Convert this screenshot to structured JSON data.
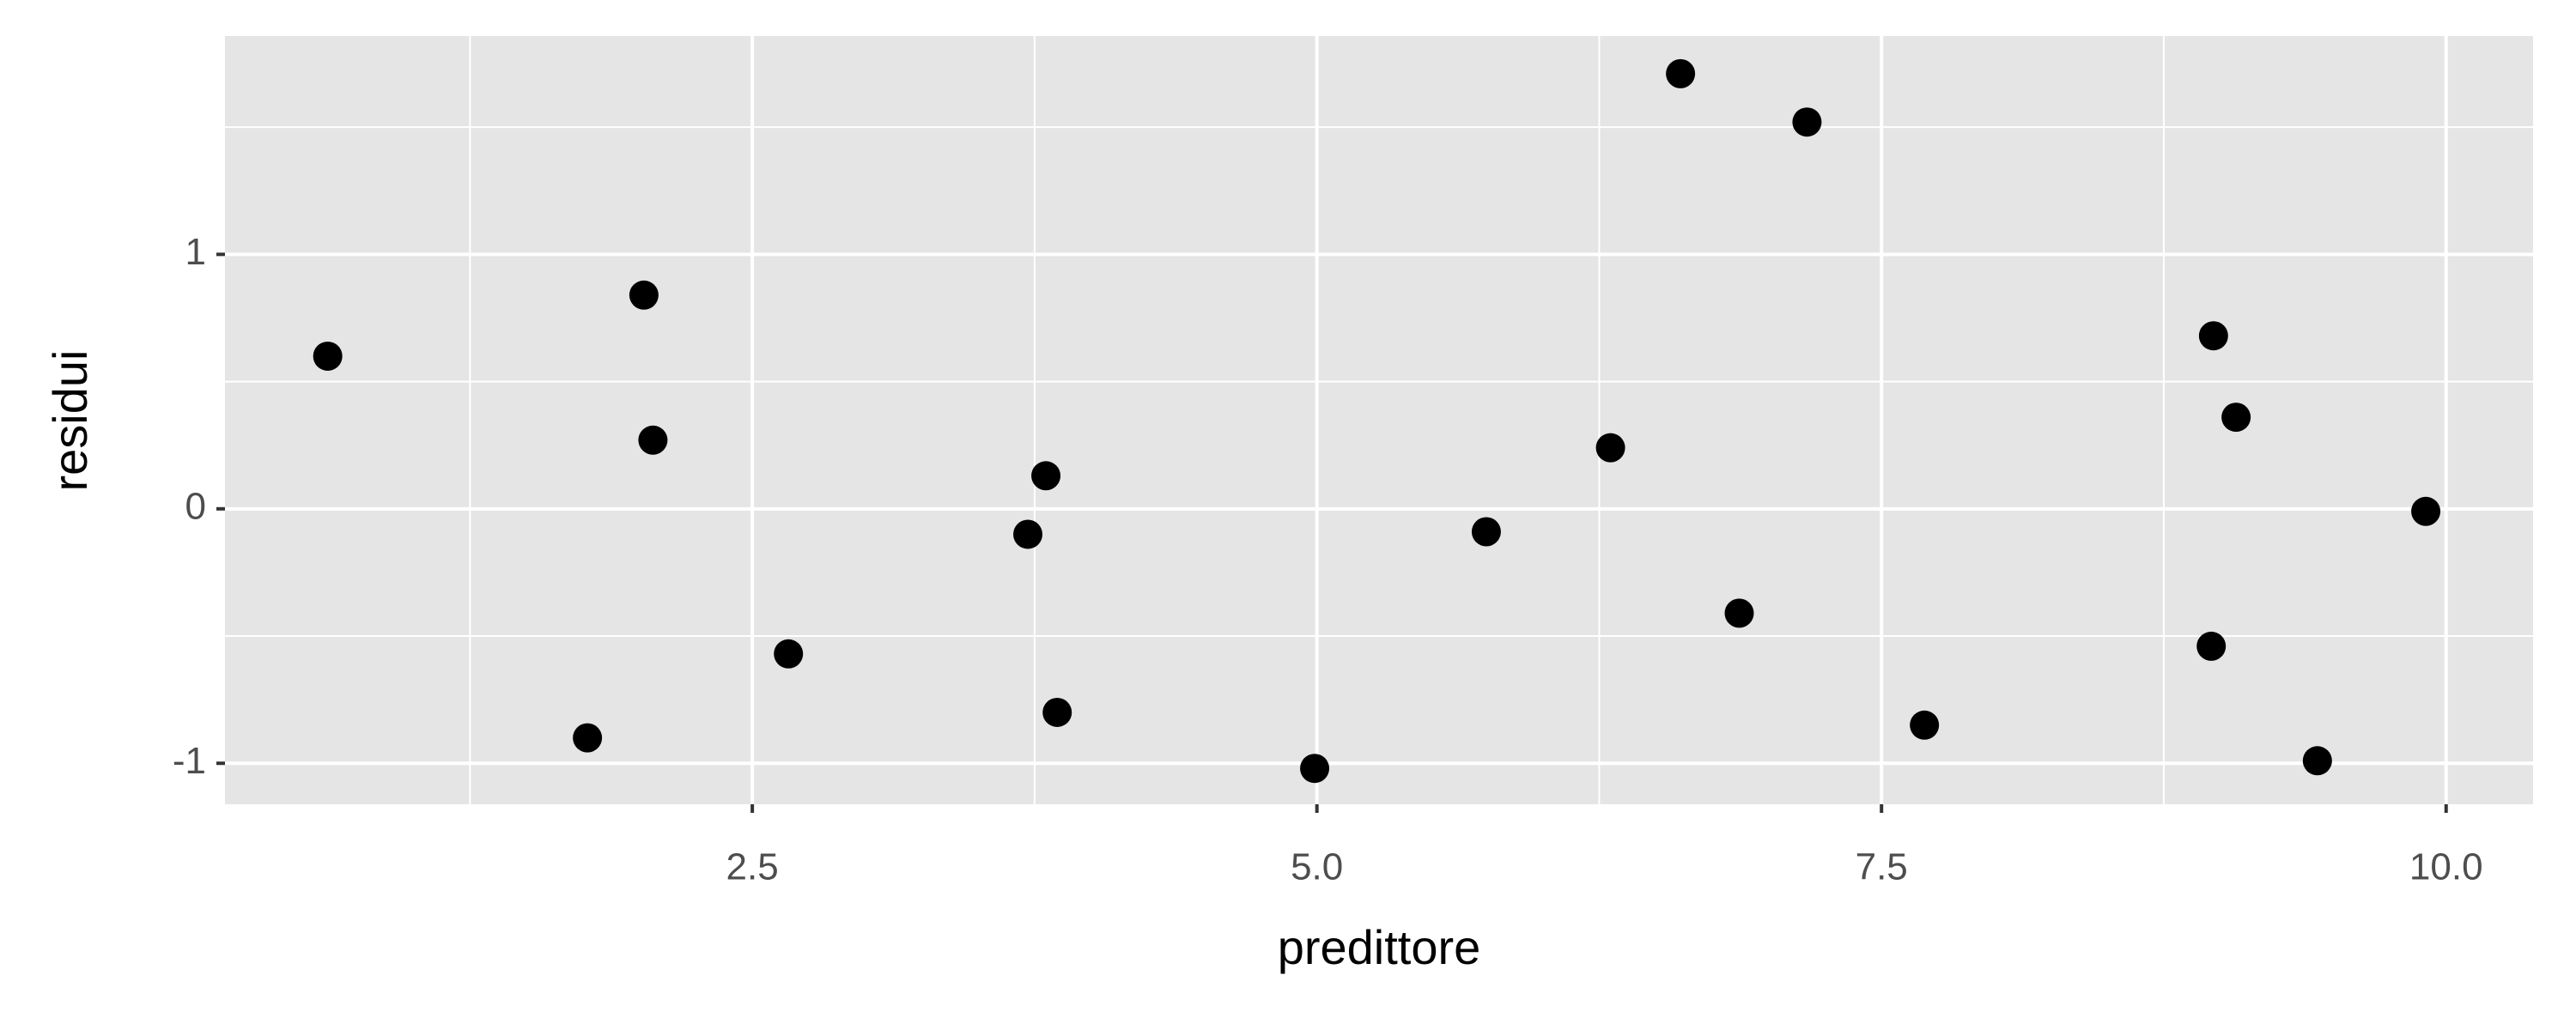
{
  "chart_data": {
    "type": "scatter",
    "x_label": "predittore",
    "y_label": "residui",
    "color": "#000000",
    "panel_color": "#e5e5e5",
    "grid": true,
    "xlim": [
      0.165,
      10.385
    ],
    "ylim": [
      -1.161,
      1.858
    ],
    "xticks": [
      {
        "value": 2.5,
        "label": "2.5"
      },
      {
        "value": 5,
        "label": "5.0"
      },
      {
        "value": 7.5,
        "label": "7.5"
      },
      {
        "value": 10,
        "label": "10.0"
      }
    ],
    "yticks": [
      -1,
      0,
      1
    ],
    "x_minor_breaks": [
      1.25,
      3.75,
      6.25,
      8.75
    ],
    "y_minor_breaks": [
      -0.5,
      0.5,
      1.5
    ],
    "x": [
      0.62,
      2.02,
      2.06,
      1.77,
      2.66,
      3.72,
      3.8,
      3.85,
      4.99,
      5.75,
      6.3,
      6.61,
      6.87,
      7.17,
      7.69,
      8.97,
      9.07,
      8.96,
      9.43,
      9.91
    ],
    "values": [
      0.6,
      0.84,
      0.27,
      -0.9,
      -0.57,
      -0.1,
      0.13,
      -0.8,
      -1.02,
      -0.09,
      0.24,
      1.71,
      -0.41,
      1.52,
      -0.85,
      0.68,
      0.36,
      -0.54,
      -0.99,
      -0.01
    ]
  }
}
